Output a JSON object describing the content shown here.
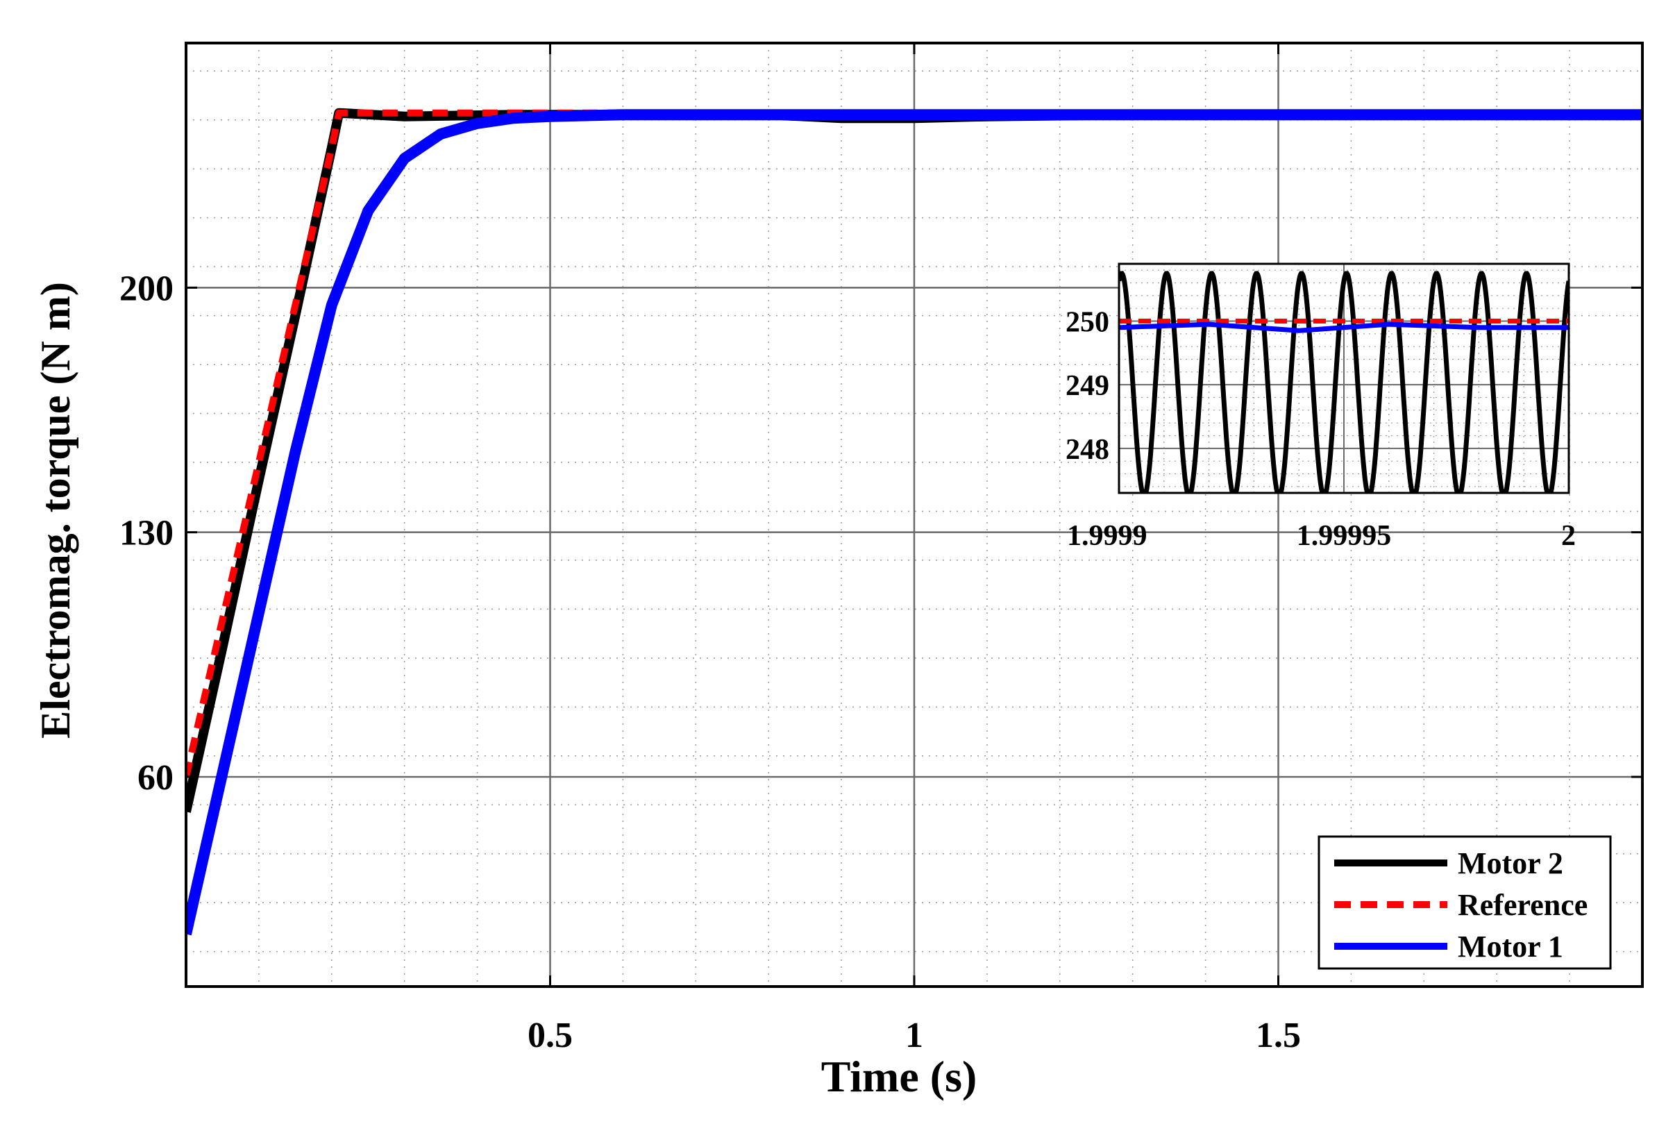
{
  "chart_data": [
    {
      "type": "line",
      "title": "",
      "xlabel": "Time (s)",
      "ylabel": "Electromag. torque (N m)",
      "xlim": [
        0,
        2
      ],
      "ylim": [
        0,
        270
      ],
      "xticks": [
        0.5,
        1,
        1.5
      ],
      "xtick_labels": [
        "0.5",
        "1",
        "1.5"
      ],
      "yticks": [
        60,
        130,
        200
      ],
      "ytick_labels": [
        "60",
        "130",
        "200"
      ],
      "grid": true,
      "minor_grid": true,
      "legend_position": "bottom-right",
      "series": [
        {
          "name": "Motor 2",
          "color": "#000000",
          "x": [
            0,
            0.05,
            0.1,
            0.15,
            0.2,
            0.21,
            0.3,
            0.45,
            0.6,
            0.8,
            0.9,
            1.0,
            1.1,
            1.3,
            1.5,
            1.7,
            2.0
          ],
          "y": [
            50,
            97,
            145,
            192,
            240,
            250,
            249,
            249.5,
            249.5,
            249.5,
            248.5,
            248.5,
            249,
            249.5,
            249.5,
            249.5,
            249.5
          ]
        },
        {
          "name": "Reference",
          "color": "#ff0000",
          "x": [
            0,
            0.2,
            0.21,
            2.0
          ],
          "y": [
            60,
            240,
            250,
            250
          ]
        },
        {
          "name": "Motor 1",
          "color": "#0000ff",
          "x": [
            0,
            0.05,
            0.1,
            0.15,
            0.2,
            0.25,
            0.3,
            0.35,
            0.4,
            0.45,
            0.5,
            0.6,
            0.8,
            1.0,
            1.5,
            2.0
          ],
          "y": [
            15,
            61,
            107,
            153,
            195,
            222,
            237,
            244,
            247,
            248.5,
            249,
            249.5,
            249.5,
            249.5,
            249.5,
            249.5
          ]
        }
      ]
    },
    {
      "type": "line",
      "title": "",
      "inset": true,
      "xlim": [
        1.9999,
        2
      ],
      "ylim": [
        247.3,
        250.9
      ],
      "xticks": [
        1.9999,
        1.99995,
        2
      ],
      "xtick_labels": [
        "1.9999",
        "1.99995",
        "2"
      ],
      "yticks": [
        248,
        249,
        250
      ],
      "ytick_labels": [
        "248",
        "249",
        "250"
      ],
      "grid": true,
      "series": [
        {
          "name": "Motor 2",
          "color": "#000000",
          "waveform": "sinusoid",
          "mean": 249,
          "amplitude": 1.75,
          "cycles": 10
        },
        {
          "name": "Reference",
          "color": "#ff0000",
          "x": [
            1.9999,
            2
          ],
          "y": [
            250,
            250
          ]
        },
        {
          "name": "Motor 1",
          "color": "#0000ff",
          "x": [
            1.9999,
            1.99992,
            1.99994,
            1.99996,
            1.99998,
            2
          ],
          "y": [
            249.9,
            249.95,
            249.85,
            249.95,
            249.9,
            249.9
          ]
        }
      ]
    }
  ]
}
